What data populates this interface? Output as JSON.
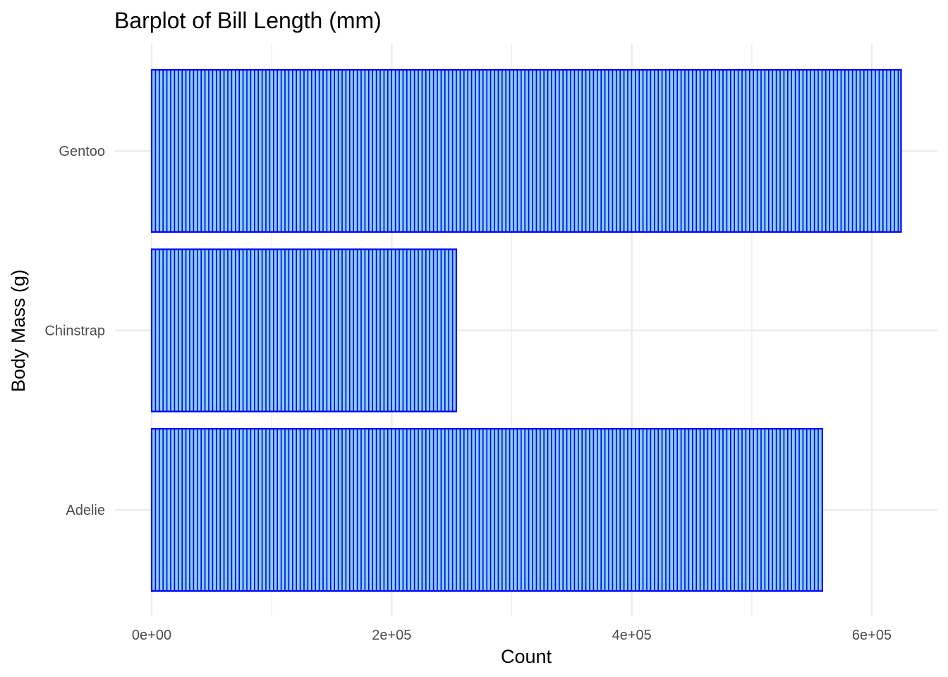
{
  "chart_data": {
    "type": "bar",
    "orientation": "horizontal",
    "title": "Barplot of Bill Length (mm)",
    "xlabel": "Count",
    "ylabel": "Body Mass (g)",
    "categories": [
      "Adelie",
      "Chinstrap",
      "Gentoo"
    ],
    "values": [
      558800,
      253850,
      624350
    ],
    "xlim": [
      0,
      640000
    ],
    "xticks": [
      0,
      200000,
      400000,
      600000
    ],
    "xtick_labels": [
      "0e+00",
      "2e+05",
      "4e+05",
      "6e+05"
    ],
    "grid": true,
    "legend": "none",
    "bar_fill_color": "#87ceeb",
    "bar_outline_color": "#0000ff",
    "grid_color": "#ebebeb"
  }
}
